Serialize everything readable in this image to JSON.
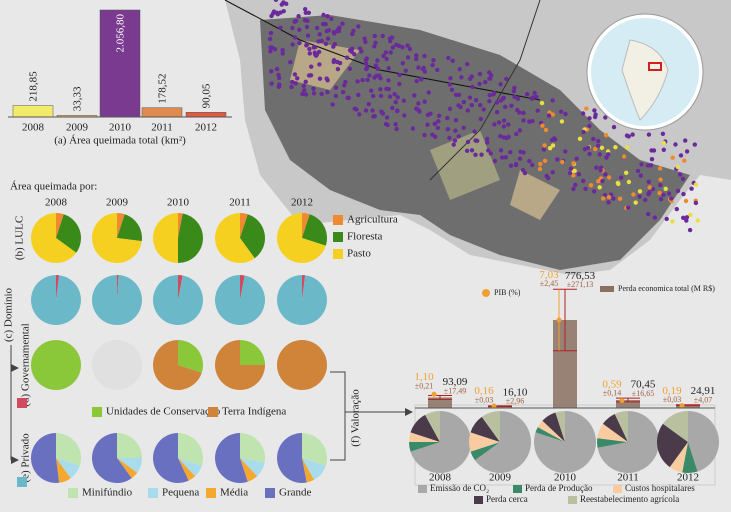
{
  "chart_data": [
    {
      "type": "bar",
      "title": "(a) Área queimada total (km²)",
      "categories": [
        "2008",
        "2009",
        "2010",
        "2011",
        "2012"
      ],
      "values": [
        218.85,
        33.33,
        2056.8,
        178.52,
        90.05
      ],
      "value_labels": [
        "218,85",
        "33,33",
        "2.056,80",
        "178,52",
        "90,05"
      ],
      "colors": [
        "#f2ea6a",
        "#f0b870",
        "#7a3a90",
        "#e08a50",
        "#e05a40"
      ]
    },
    {
      "type": "pie-grid",
      "title": "Área queimada por:",
      "categories": [
        "2008",
        "2009",
        "2010",
        "2011",
        "2012"
      ],
      "rows": [
        {
          "label": "(b) LULC",
          "series": [
            {
              "name": "Agricultura",
              "color": "#f08a30",
              "values": [
                5,
                5,
                3,
                5,
                5
              ]
            },
            {
              "name": "Floresta",
              "color": "#3a8a1a",
              "values": [
                30,
                22,
                47,
                35,
                25
              ]
            },
            {
              "name": "Pasto",
              "color": "#f5d020",
              "values": [
                65,
                73,
                50,
                60,
                70
              ]
            }
          ]
        },
        {
          "label": "(c) Domínio",
          "series": [
            {
              "color": "#d04a60",
              "values": [
                2,
                1,
                3,
                3,
                2
              ]
            },
            {
              "color": "#6ab8c8",
              "values": [
                98,
                99,
                97,
                97,
                98
              ]
            }
          ]
        },
        {
          "label": "(d) Governamental",
          "series": [
            {
              "name": "Unidades de Conservação",
              "color": "#8ac83a",
              "values": [
                100,
                null,
                30,
                25,
                0
              ]
            },
            {
              "name": "Terra Indígena",
              "color": "#d0843a",
              "values": [
                0,
                null,
                70,
                75,
                100
              ]
            }
          ]
        },
        {
          "label": "(e) Privado",
          "series": [
            {
              "name": "Minifúndio",
              "color": "#bfe4b0",
              "values": [
                30,
                25,
                30,
                28,
                30
              ]
            },
            {
              "name": "Pequena",
              "color": "#a8dcec",
              "values": [
                10,
                10,
                8,
                10,
                12
              ]
            },
            {
              "name": "Média",
              "color": "#f5a830",
              "values": [
                8,
                5,
                5,
                7,
                5
              ]
            },
            {
              "name": "Grande",
              "color": "#6a70c0",
              "values": [
                52,
                60,
                57,
                55,
                53
              ]
            }
          ]
        }
      ]
    },
    {
      "type": "bar-pie",
      "title": "(f) Valoração",
      "categories": [
        "2008",
        "2009",
        "2010",
        "2011",
        "2012"
      ],
      "series": [
        {
          "name": "PIB (%)",
          "color": "#f0a030",
          "values": [
            1.1,
            0.16,
            7.03,
            0.59,
            0.19
          ],
          "value_labels": [
            "1,10",
            "0,16",
            "7,03",
            "0,59",
            "0,19"
          ],
          "errors": [
            0.21,
            0.03,
            2.45,
            0.14,
            0.03
          ],
          "error_labels": [
            "±0,21",
            "±0,03",
            "±2,45",
            "±0,14",
            "±0,03"
          ]
        },
        {
          "name": "Perda economica total (M R$)",
          "color": "#8a7060",
          "values": [
            93.09,
            16.1,
            776.53,
            70.45,
            24.91
          ],
          "value_labels": [
            "93,09",
            "16,10",
            "776,53",
            "70,45",
            "24,91"
          ],
          "errors": [
            17.49,
            2.96,
            271.13,
            16.65,
            4.07
          ],
          "error_labels": [
            "±17,49",
            "±2,96",
            "±271,13",
            "±16,65",
            "±4,07"
          ]
        }
      ],
      "pies": [
        {
          "name": "Emissão de CO₂",
          "color": "#a8a8a8",
          "values": [
            70,
            65,
            80,
            72,
            45
          ]
        },
        {
          "name": "Perda de Produção",
          "color": "#3a8a6a",
          "values": [
            5,
            5,
            3,
            5,
            8
          ]
        },
        {
          "name": "Custos hospitalares",
          "color": "#f8cca0",
          "values": [
            5,
            10,
            4,
            8,
            7
          ]
        },
        {
          "name": "Perda cerca",
          "color": "#4a3a4a",
          "values": [
            12,
            10,
            8,
            8,
            25
          ]
        },
        {
          "name": "Reestabelecimento agrícola",
          "color": "#b8c0a0",
          "values": [
            8,
            10,
            5,
            7,
            15
          ]
        }
      ]
    }
  ]
}
